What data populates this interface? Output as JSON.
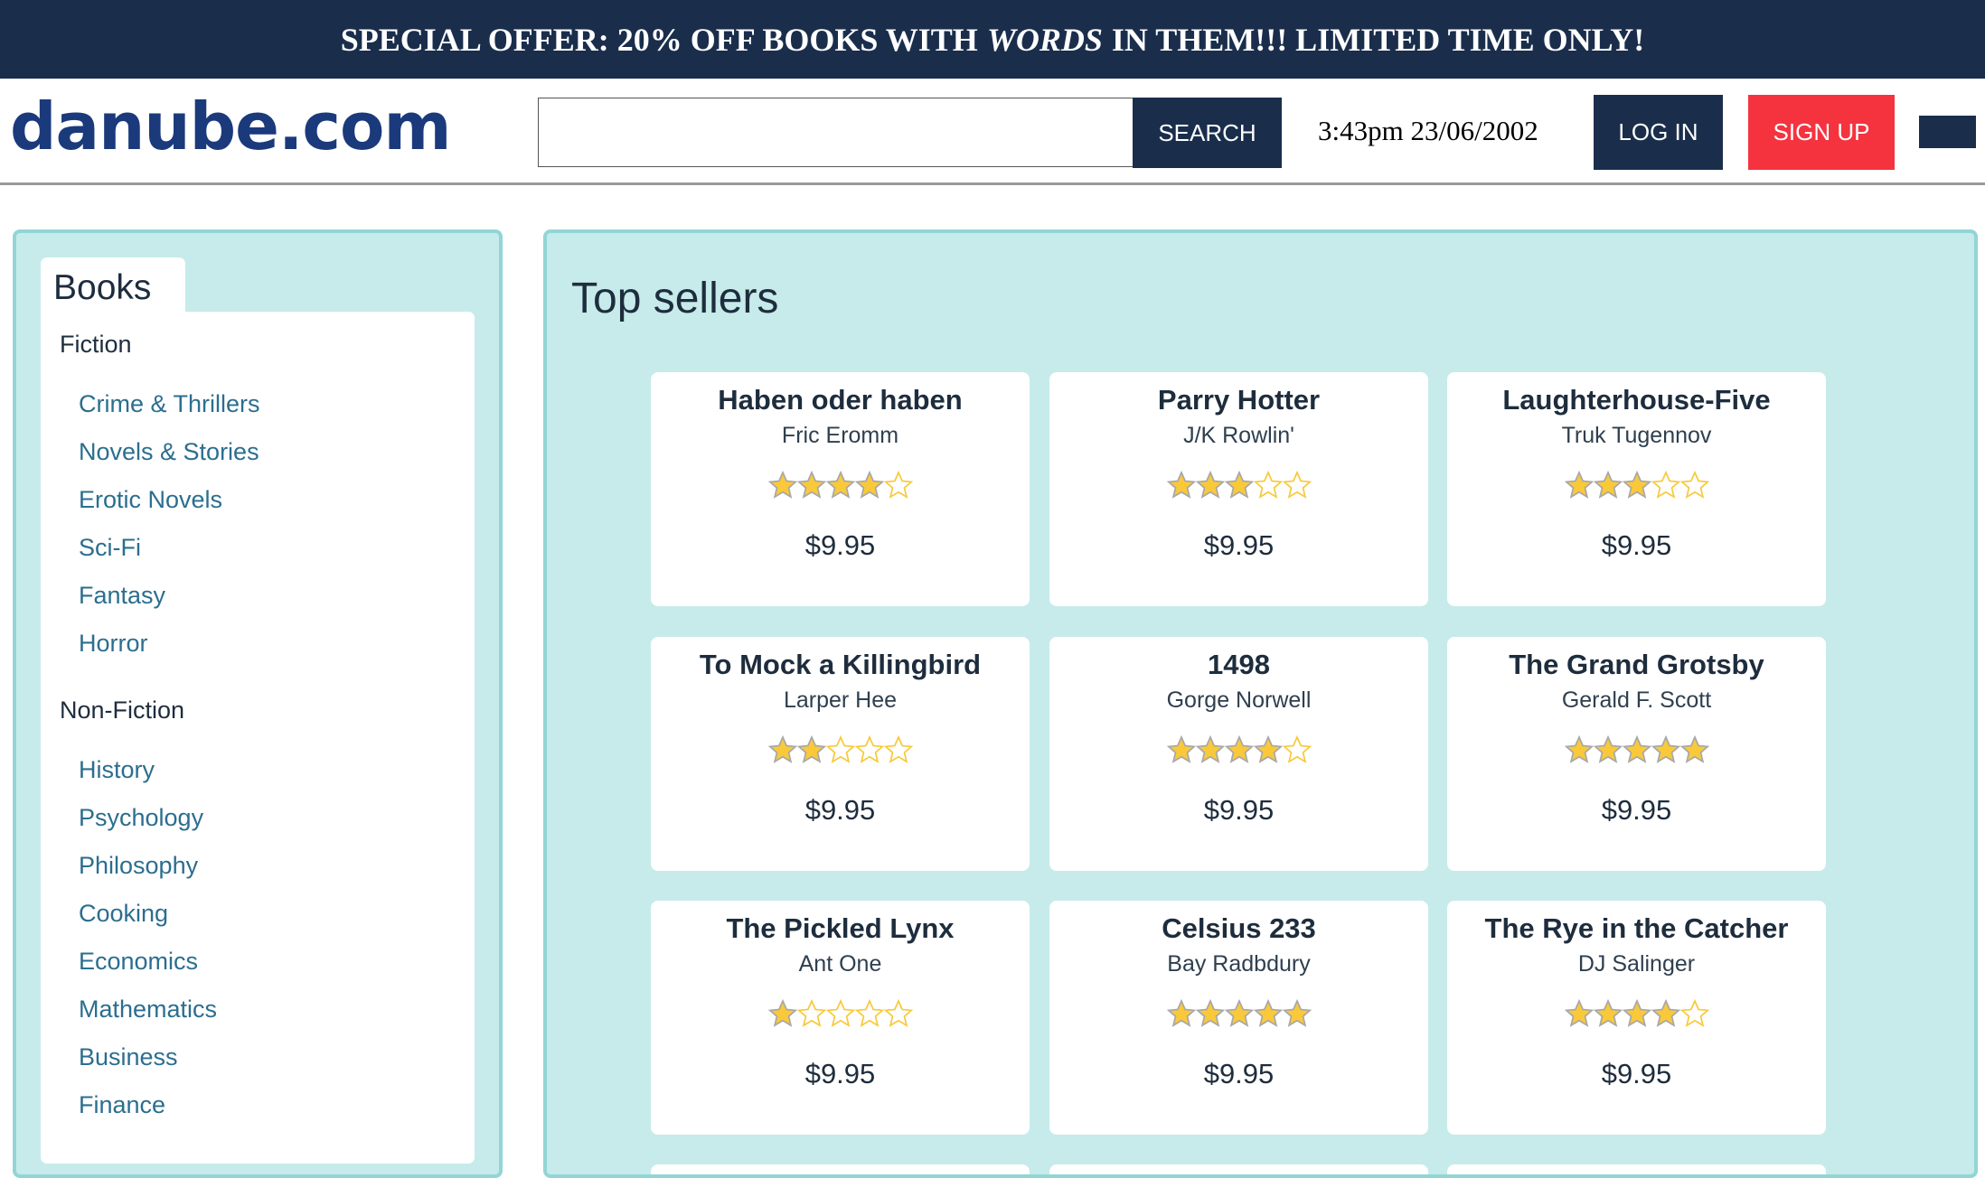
{
  "banner": {
    "before": "SPECIAL OFFER: 20% OFF BOOKS WITH",
    "emphasis": "WORDS",
    "after": "IN THEM!!! LIMITED TIME ONLY!"
  },
  "header": {
    "logo": "danube.com",
    "search_placeholder": "",
    "search_value": "",
    "search_label": "SEARCH",
    "datetime": "3:43pm 23/06/2002",
    "login_label": "LOG IN",
    "signup_label": "SIGN UP"
  },
  "colors": {
    "navy": "#1a2e4c",
    "signup": "#f5333f",
    "panel": "#c6ebea",
    "link": "#2b6e8f",
    "star": "#f9c93a"
  },
  "sidebar": {
    "tab": "Books",
    "groups": [
      {
        "label": "Fiction",
        "items": [
          "Crime & Thrillers",
          "Novels & Stories",
          "Erotic Novels",
          "Sci-Fi",
          "Fantasy",
          "Horror"
        ]
      },
      {
        "label": "Non-Fiction",
        "items": [
          "History",
          "Psychology",
          "Philosophy",
          "Cooking",
          "Economics",
          "Mathematics",
          "Business",
          "Finance"
        ]
      }
    ]
  },
  "main": {
    "heading": "Top sellers",
    "books": [
      {
        "title": "Haben oder haben",
        "author": "Fric Eromm",
        "rating": 4,
        "price": "$9.95"
      },
      {
        "title": "Parry Hotter",
        "author": "J/K Rowlin'",
        "rating": 3,
        "price": "$9.95"
      },
      {
        "title": "Laughterhouse-Five",
        "author": "Truk Tugennov",
        "rating": 3,
        "price": "$9.95"
      },
      {
        "title": "To Mock a Killingbird",
        "author": "Larper Hee",
        "rating": 2,
        "price": "$9.95"
      },
      {
        "title": "1498",
        "author": "Gorge Norwell",
        "rating": 4,
        "price": "$9.95"
      },
      {
        "title": "The Grand Grotsby",
        "author": "Gerald F. Scott",
        "rating": 5,
        "price": "$9.95"
      },
      {
        "title": "The Pickled Lynx",
        "author": "Ant One",
        "rating": 1,
        "price": "$9.95"
      },
      {
        "title": "Celsius 233",
        "author": "Bay Radbdury",
        "rating": 5,
        "price": "$9.95"
      },
      {
        "title": "The Rye in the Catcher",
        "author": "DJ Salinger",
        "rating": 4,
        "price": "$9.95"
      }
    ]
  }
}
